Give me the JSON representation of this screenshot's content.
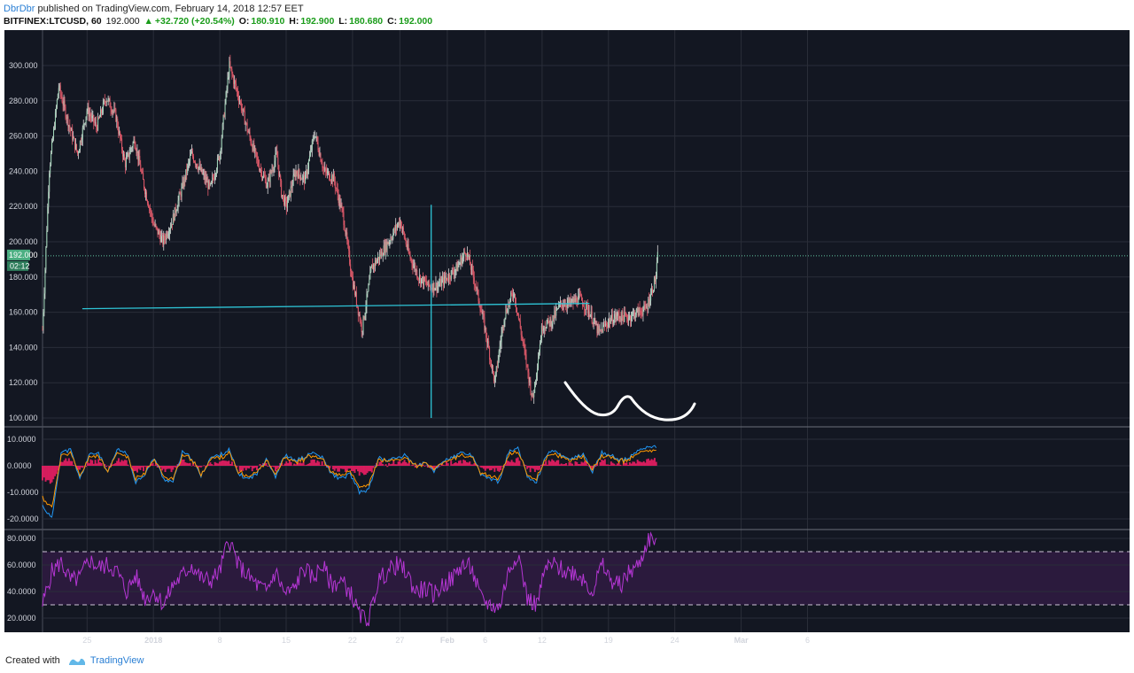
{
  "header": {
    "author": "DbrDbr",
    "published": "published on TradingView.com, February 14, 2018 12:57 EET"
  },
  "ticker": {
    "symbol": "BITFINEX:LTCUSD, 60",
    "last": "192.000",
    "change": "+32.720 (+20.54%)",
    "open_label": "O:",
    "open": "180.910",
    "high_label": "H:",
    "high": "192.900",
    "low_label": "L:",
    "low": "180.680",
    "close_label": "C:",
    "close": "192.000",
    "up_color": "#1a9c1a"
  },
  "footer": {
    "created_with": "Created with",
    "brand": "TradingView"
  },
  "chart_data": [
    {
      "type": "candlestick",
      "title": "BITFINEX:LTCUSD, 60",
      "y_ticks": [
        "300.000",
        "280.000",
        "260.000",
        "240.000",
        "220.000",
        "200.000",
        "180.000",
        "160.000",
        "140.000",
        "120.000",
        "100.000"
      ],
      "ylim": [
        95,
        310
      ],
      "x_ticks": [
        "25",
        "2018",
        "8",
        "15",
        "22",
        "27",
        "Feb",
        "6",
        "12",
        "19",
        "24",
        "Mar",
        "6"
      ],
      "price_badge": "192.000",
      "countdown_badge": "02:12",
      "last_price": 192,
      "series": [
        {
          "x": [
            20.3,
            21,
            22,
            23,
            24,
            25,
            26,
            27,
            28,
            29,
            30,
            31,
            32,
            33,
            34,
            35,
            36,
            37,
            38,
            39,
            40,
            41,
            42,
            43,
            44,
            45,
            45.5,
            46,
            47,
            48,
            49,
            50,
            51,
            52,
            53,
            54,
            55,
            56,
            57,
            58,
            59,
            60,
            61,
            62,
            63,
            64,
            65,
            66,
            67,
            68,
            69,
            70,
            71,
            72,
            73,
            74,
            75,
            76,
            77,
            78,
            79,
            80,
            81,
            82,
            83,
            84,
            85,
            85.2
          ],
          "y": [
            150,
            240,
            288,
            268,
            250,
            275,
            265,
            282,
            272,
            244,
            258,
            232,
            210,
            200,
            212,
            230,
            250,
            240,
            230,
            250,
            300,
            282,
            262,
            245,
            232,
            250,
            228,
            220,
            240,
            235,
            262,
            240,
            236,
            215,
            178,
            150,
            185,
            193,
            202,
            212,
            192,
            180,
            175,
            175,
            180,
            185,
            195,
            175,
            150,
            120,
            158,
            172,
            142,
            110,
            152,
            155,
            165,
            165,
            168,
            160,
            148,
            155,
            158,
            157,
            160,
            162,
            180,
            192
          ]
        }
      ],
      "annotations": {
        "neckline": [
          [
            24.5,
            162
          ],
          [
            78,
            165
          ]
        ],
        "vertical_line_day": 61.3,
        "vertical_line_range": [
          100,
          221
        ],
        "line_color": "#2ec4d6"
      }
    },
    {
      "type": "line",
      "y_ticks": [
        "10.0000",
        "0.0000",
        "-10.0000",
        "-20.0000"
      ],
      "ylim": [
        -23,
        12
      ],
      "series": [
        {
          "values": [
            -15,
            -20,
            5,
            6,
            -5,
            4,
            5,
            -3,
            6,
            5,
            -6,
            -3,
            3,
            -5,
            -6,
            5,
            3,
            -4,
            3,
            4,
            6,
            -3,
            -5,
            -3,
            3,
            -4,
            4,
            2,
            3,
            5,
            3,
            -3,
            -5,
            -3,
            -10,
            -9,
            3,
            2,
            3,
            4,
            0,
            1,
            -2,
            2,
            3,
            5,
            4,
            -3,
            -5,
            -6,
            5,
            7,
            -4,
            -6,
            4,
            6,
            3,
            3,
            4,
            -2,
            5,
            4,
            2,
            3,
            6,
            7,
            7
          ]
        }
      ],
      "colors": [
        "#2196f3",
        "#ff9800",
        "#e91e63"
      ]
    },
    {
      "type": "line",
      "y_ticks": [
        "80.0000",
        "60.0000",
        "40.0000",
        "20.0000"
      ],
      "ylim": [
        12,
        85
      ],
      "bands": [
        30,
        70
      ],
      "series": [
        {
          "values": [
            30,
            55,
            62,
            48,
            50,
            64,
            58,
            60,
            55,
            40,
            52,
            35,
            40,
            30,
            45,
            52,
            60,
            50,
            48,
            55,
            80,
            60,
            52,
            45,
            40,
            55,
            38,
            42,
            58,
            50,
            60,
            45,
            48,
            40,
            22,
            18,
            48,
            55,
            60,
            55,
            40,
            42,
            38,
            45,
            50,
            60,
            58,
            35,
            30,
            28,
            55,
            70,
            35,
            30,
            58,
            60,
            55,
            55,
            50,
            40,
            60,
            48,
            45,
            55,
            60,
            80,
            78
          ]
        }
      ],
      "color": "#b536d4"
    }
  ]
}
